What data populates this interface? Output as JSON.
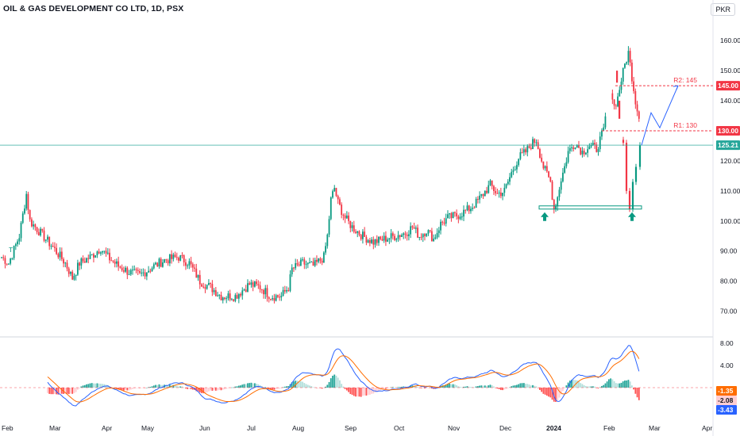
{
  "header": {
    "title": "OIL & GAS DEVELOPMENT CO LTD, 1D, PSX",
    "currency": "PKR"
  },
  "annotations": {
    "r1_label": "R1: 130",
    "r2_label": "R2: 145",
    "r1_tag": "130.00",
    "r2_tag": "145.00",
    "last_tag": "125.21",
    "macd_tags": [
      "-1.35",
      "-2.08",
      "-3.43"
    ],
    "small_marker": "T"
  },
  "colors": {
    "up": "#089981",
    "down": "#f23645",
    "macd": "#2962ff",
    "signal": "#ff6d00",
    "hist_up_strong": "#26a69a",
    "hist_up_weak": "#b2dfdb",
    "hist_down_strong": "#ff5252",
    "hist_down_weak": "#ffcdd2",
    "price_line": "#26a69a",
    "resistance": "#f23645",
    "projection": "#2962ff",
    "support": "#089981"
  },
  "chart_data": [
    {
      "type": "candlestick",
      "ylim": [
        67,
        164
      ],
      "y_ticks": [
        "160.00",
        "150.00",
        "140.00",
        "130.00",
        "120.00",
        "110.00",
        "100.00",
        "90.00",
        "80.00",
        "70.00"
      ],
      "x_labels": [
        "Feb",
        "Mar",
        "Apr",
        "May",
        "Jun",
        "Jul",
        "Aug",
        "Sep",
        "Oct",
        "Nov",
        "Dec",
        "2024",
        "Feb",
        "Mar",
        "Apr"
      ],
      "waypoints": [
        [
          0,
          88
        ],
        [
          4,
          86
        ],
        [
          10,
          95
        ],
        [
          14,
          109
        ],
        [
          16,
          100
        ],
        [
          22,
          96
        ],
        [
          28,
          92
        ],
        [
          36,
          86
        ],
        [
          40,
          81
        ],
        [
          44,
          86
        ],
        [
          50,
          88
        ],
        [
          56,
          91
        ],
        [
          60,
          88
        ],
        [
          66,
          85
        ],
        [
          72,
          83
        ],
        [
          78,
          82
        ],
        [
          86,
          85
        ],
        [
          92,
          87
        ],
        [
          100,
          88
        ],
        [
          106,
          86
        ],
        [
          112,
          80
        ],
        [
          118,
          78
        ],
        [
          124,
          75
        ],
        [
          132,
          75
        ],
        [
          140,
          79
        ],
        [
          146,
          78
        ],
        [
          152,
          75
        ],
        [
          158,
          75
        ],
        [
          162,
          78
        ],
        [
          164,
          84
        ],
        [
          170,
          86
        ],
        [
          176,
          85
        ],
        [
          182,
          88
        ],
        [
          184,
          95
        ],
        [
          186,
          107
        ],
        [
          188,
          111
        ],
        [
          190,
          106
        ],
        [
          194,
          101
        ],
        [
          198,
          98
        ],
        [
          204,
          95
        ],
        [
          210,
          93
        ],
        [
          216,
          94
        ],
        [
          222,
          95
        ],
        [
          228,
          96
        ],
        [
          232,
          98
        ],
        [
          236,
          95
        ],
        [
          240,
          97
        ],
        [
          244,
          94
        ],
        [
          248,
          99
        ],
        [
          252,
          101
        ],
        [
          258,
          102
        ],
        [
          264,
          104
        ],
        [
          268,
          106
        ],
        [
          272,
          109
        ],
        [
          276,
          112
        ],
        [
          280,
          109
        ],
        [
          284,
          110
        ],
        [
          288,
          116
        ],
        [
          292,
          121
        ],
        [
          296,
          123
        ],
        [
          300,
          126
        ],
        [
          302,
          127
        ],
        [
          306,
          118
        ],
        [
          310,
          113
        ],
        [
          312,
          104
        ],
        [
          314,
          108
        ],
        [
          316,
          114
        ],
        [
          318,
          118
        ],
        [
          320,
          123
        ],
        [
          324,
          126
        ],
        [
          328,
          123
        ],
        [
          332,
          125
        ],
        [
          336,
          124
        ],
        [
          340,
          130
        ],
        [
          342,
          138
        ],
        [
          344,
          144
        ],
        [
          346,
          138
        ],
        [
          348,
          141
        ],
        [
          350,
          147
        ],
        [
          352,
          152
        ],
        [
          354,
          156
        ],
        [
          356,
          148
        ],
        [
          358,
          140
        ],
        [
          360,
          134
        ]
      ],
      "feb_candles": [
        126,
        110,
        104,
        113,
        118,
        125.21
      ],
      "last_price": 125.21,
      "resistance": [
        {
          "label": "R1",
          "value": 130
        },
        {
          "label": "R2",
          "value": 145
        }
      ],
      "support": 104.5,
      "projection": [
        [
          125.21,
          0
        ],
        [
          136,
          4
        ],
        [
          131,
          8
        ],
        [
          145,
          13
        ]
      ]
    },
    {
      "type": "macd",
      "ylim": [
        -8,
        8
      ],
      "y_ticks": [
        "8.00",
        "4.00"
      ],
      "last_values": [
        -1.35,
        -2.08,
        -3.43
      ]
    }
  ]
}
